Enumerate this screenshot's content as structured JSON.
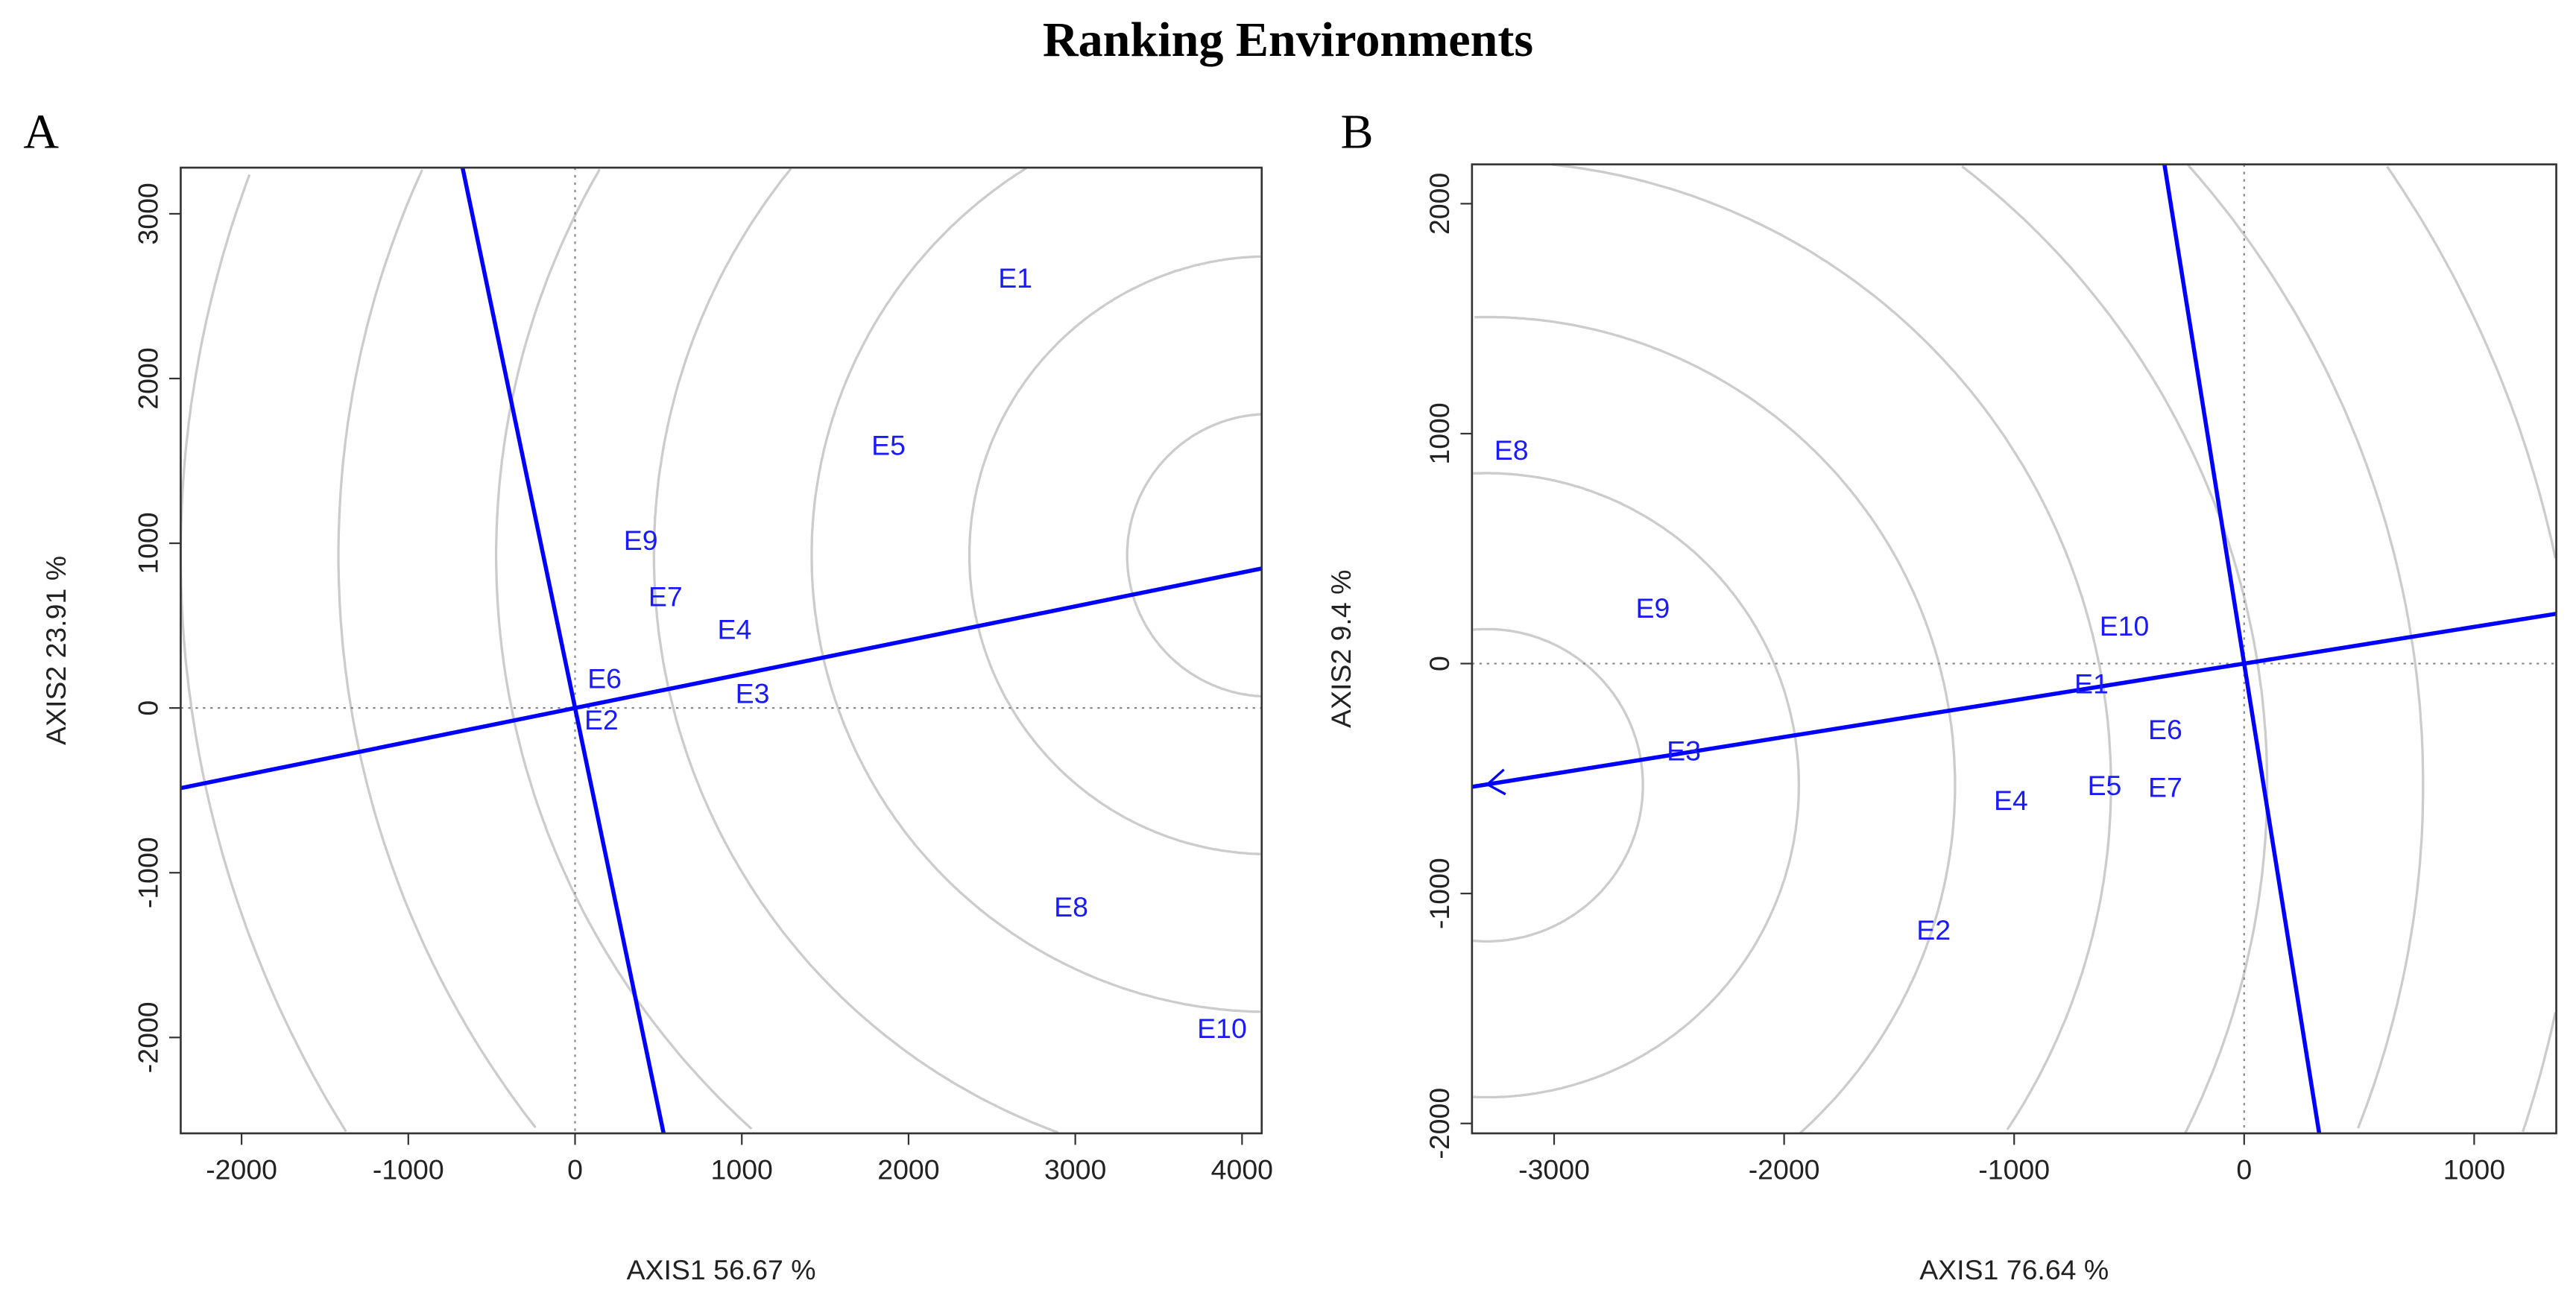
{
  "title": "Ranking Environments",
  "colors": {
    "line": "#0000ff",
    "label": "#1a1aff",
    "circle": "#cccccc",
    "guide": "#888888"
  },
  "chart_data": [
    {
      "type": "scatter",
      "panel_label": "A",
      "xlabel": "AXIS1 56.67 %",
      "ylabel": "AXIS2 23.91 %",
      "xlim": [
        -2365,
        4118
      ],
      "ylim": [
        -2582,
        3280
      ],
      "xticks": [
        -2000,
        -1000,
        0,
        1000,
        2000,
        3000,
        4000
      ],
      "yticks": [
        -2000,
        -1000,
        0,
        1000,
        2000,
        3000
      ],
      "points": [
        {
          "label": "E1",
          "x": 2640,
          "y": 2612
        },
        {
          "label": "E2",
          "x": 158,
          "y": -70
        },
        {
          "label": "E3",
          "x": 1064,
          "y": 90
        },
        {
          "label": "E4",
          "x": 956,
          "y": 478
        },
        {
          "label": "E5",
          "x": 1880,
          "y": 1595
        },
        {
          "label": "E6",
          "x": 177,
          "y": 10
        },
        {
          "label": "E7",
          "x": 542,
          "y": 678
        },
        {
          "label": "E8",
          "x": 2975,
          "y": -1206
        },
        {
          "label": "E9",
          "x": 394,
          "y": 678
        },
        {
          "label": "E10",
          "x": 3880,
          "y": -1944
        }
      ],
      "aea_direction": [
        4118,
        847
      ],
      "circle_center": [
        4158,
        927
      ],
      "circle_radii": [
        847,
        1793,
        2739,
        3685,
        4631,
        5577,
        6523,
        7469
      ],
      "arrow": false
    },
    {
      "type": "scatter",
      "panel_label": "B",
      "xlabel": "AXIS1 76.64 %",
      "ylabel": "AXIS2 9.4 %",
      "xlim": [
        -3357,
        1357
      ],
      "ylim": [
        -2043,
        2171
      ],
      "xticks": [
        -3000,
        -2000,
        -1000,
        0,
        1000
      ],
      "yticks": [
        -2000,
        -1000,
        0,
        1000,
        2000
      ],
      "points": [
        {
          "label": "E1",
          "x": -664,
          "y": -86
        },
        {
          "label": "E2",
          "x": -1350,
          "y": -1157
        },
        {
          "label": "E3",
          "x": -2436,
          "y": -379
        },
        {
          "label": "E4",
          "x": -1014,
          "y": -593
        },
        {
          "label": "E5",
          "x": -607,
          "y": -529
        },
        {
          "label": "E6",
          "x": -343,
          "y": -286
        },
        {
          "label": "E7",
          "x": -343,
          "y": -414
        },
        {
          "label": "E8",
          "x": -3186,
          "y": 929
        },
        {
          "label": "E9",
          "x": -2571,
          "y": 243
        },
        {
          "label": "E10",
          "x": -521,
          "y": 164
        }
      ],
      "aea_direction": [
        -3357,
        -536
      ],
      "circle_center": [
        -3293,
        -529
      ],
      "circle_radii": [
        679,
        1357,
        2036,
        2714,
        3393,
        4071,
        4750,
        5429
      ],
      "arrow": true
    }
  ]
}
